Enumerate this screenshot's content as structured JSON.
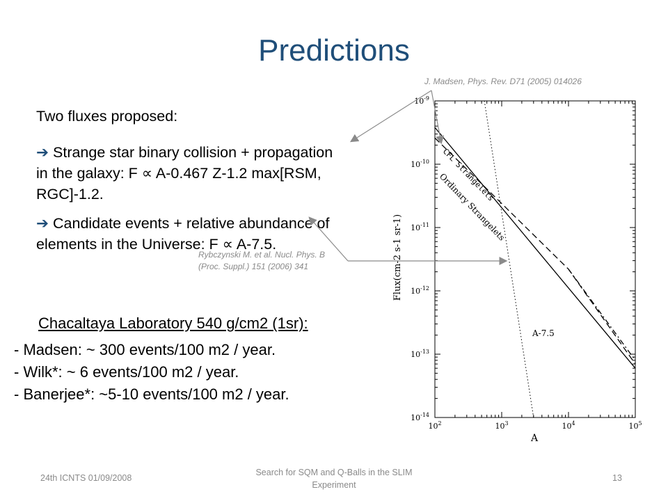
{
  "slide": {
    "title": "Predictions",
    "ref_madsen": "J. Madsen, Phys. Rev. D71 (2005) 014026",
    "ref_rybczynski_line1": "Rybczynski M. et al. Nucl. Phys. B",
    "ref_rybczynski_line2": "(Proc. Suppl.) 151 (2006) 341",
    "intro": "Two fluxes proposed:",
    "bullet1_line1": "Strange star binary collision + propagation",
    "bullet1_line2": "in the galaxy: F ∝ A-0.467 Z-1.2 max[RSM, RGC]-1.2.",
    "bullet2_line1": "Candidate events + relative abundance of",
    "bullet2_line2": "elements in the Universe: F ∝ A-7.5.",
    "lab": "Chacaltaya Laboratory  540 g/cm2 (1sr):",
    "estimates": [
      "- Madsen: ~ 300 events/100 m2 / year.",
      "- Wilk*: ~ 6 events/100 m2 / year.",
      "- Banerjee*: ~5-10 events/100 m2 / year."
    ],
    "footer_left": "24th ICNTS 01/09/2008",
    "footer_center_line1": "Search for SQM and Q-Balls in the SLIM",
    "footer_center_line2": "Experiment",
    "footer_right": "13"
  },
  "chart_data": {
    "type": "line",
    "xlabel": "A",
    "ylabel": "Flux(cm-2 s-1 sr-1)",
    "xscale": "log",
    "yscale": "log",
    "xlim": [
      100,
      100000
    ],
    "ylim": [
      1e-14,
      1e-09
    ],
    "x_ticks": [
      "10^2",
      "10^3",
      "10^4",
      "10^5"
    ],
    "y_ticks": [
      "10^-14",
      "10^-13",
      "10^-12",
      "10^-11",
      "10^-10",
      "10^-9"
    ],
    "series": [
      {
        "name": "CFL Strangelets",
        "style": "solid",
        "x": [
          100,
          100000
        ],
        "y": [
          3.8e-10,
          6e-14
        ]
      },
      {
        "name": "Ordinary Strangelets",
        "style": "dashed",
        "x": [
          100,
          10000,
          100000
        ],
        "y": [
          2.6e-10,
          2.2e-12,
          7e-14
        ]
      },
      {
        "name": "",
        "style": "dashdot",
        "x": [
          10000,
          100000
        ],
        "y": [
          2.2e-12,
          8e-14
        ]
      },
      {
        "name": "A-7.5",
        "style": "dotted",
        "x": [
          550,
          3000
        ],
        "y": [
          1e-09,
          1e-14
        ]
      }
    ],
    "series_labels": {
      "cfl": "CFL Strangelets",
      "ordinary": "Ordinary Strangelets",
      "power": "A-7.5"
    }
  }
}
